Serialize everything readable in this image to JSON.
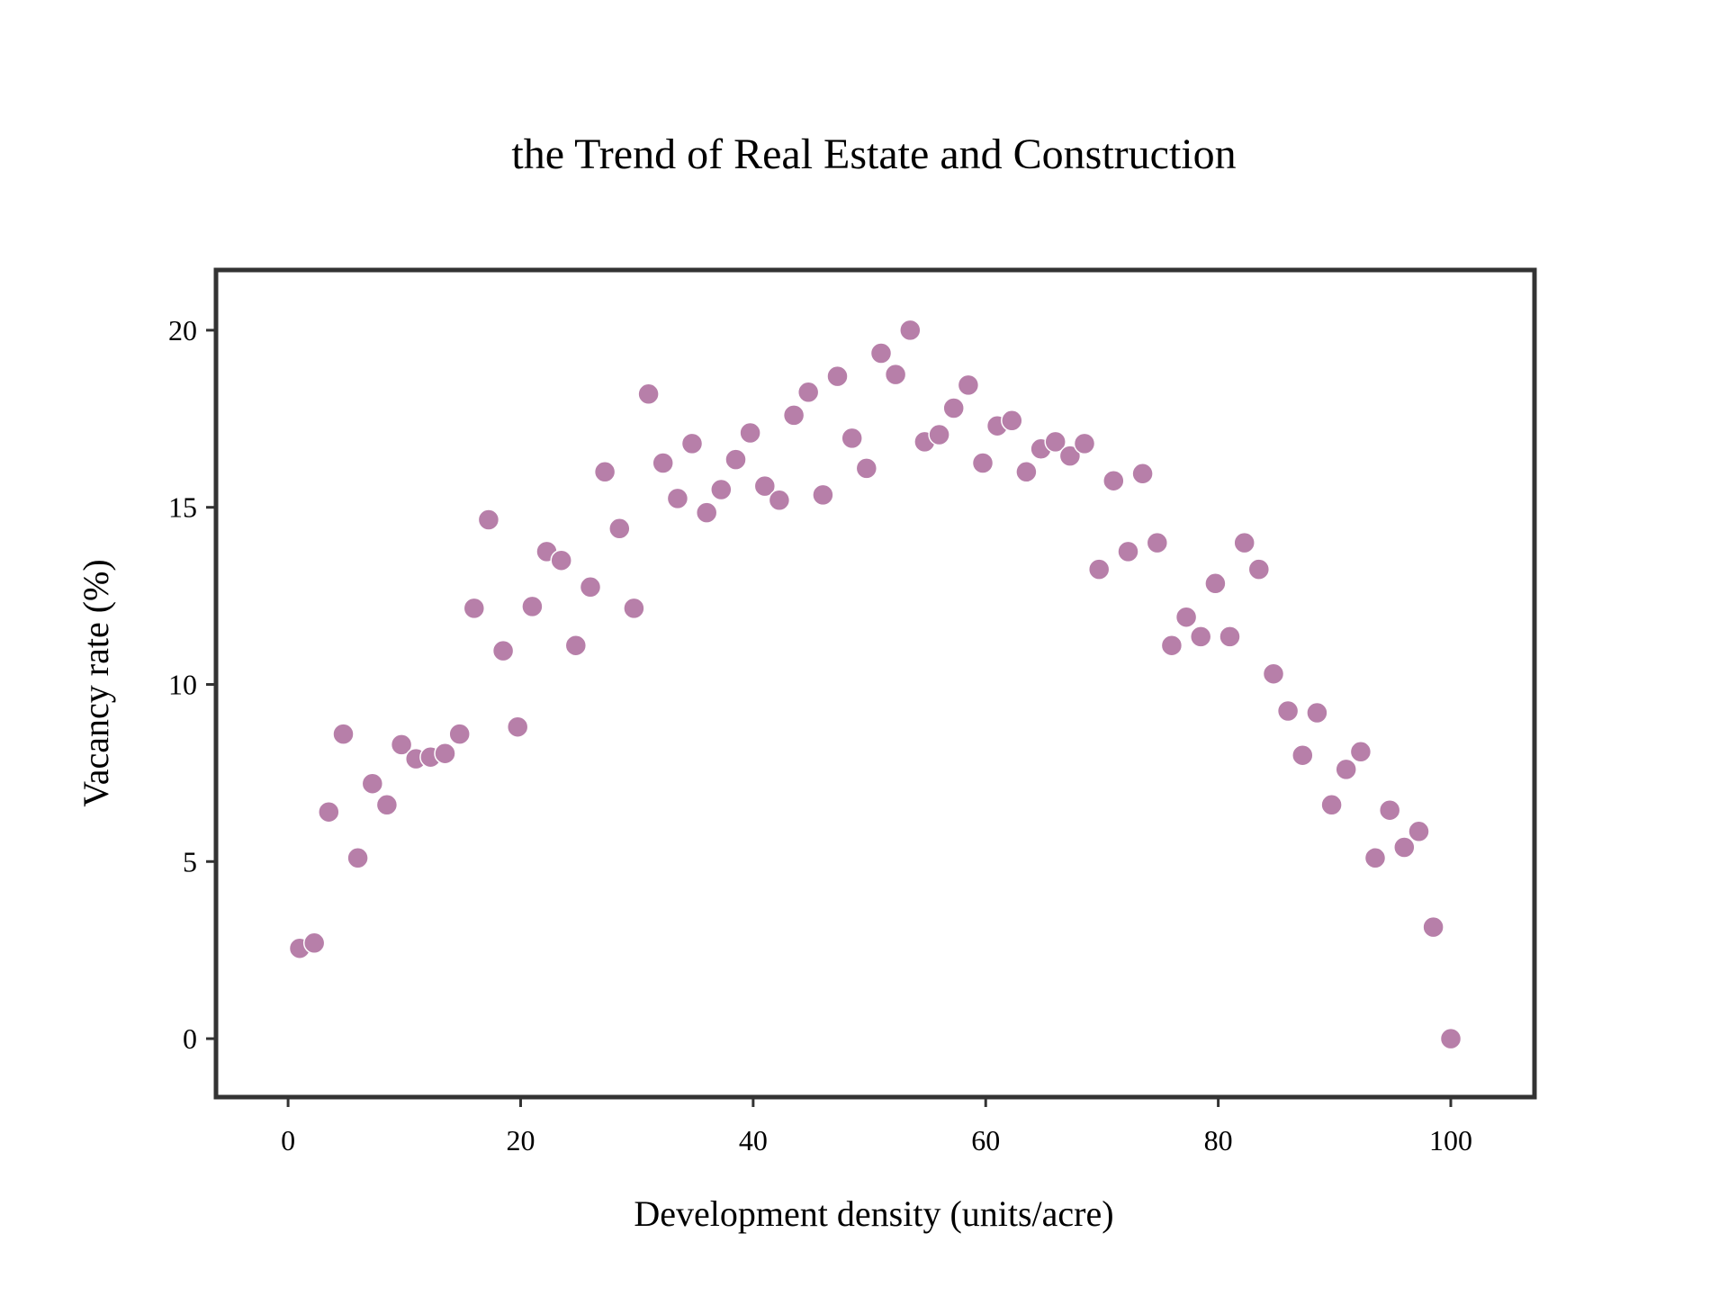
{
  "chart_data": {
    "type": "scatter",
    "title": "the Trend of Real Estate and Construction",
    "xlabel": "Development density (units/acre)",
    "ylabel": "Vacancy rate (%)",
    "xlim": [
      -6.2,
      107.2
    ],
    "ylim": [
      -1.65,
      21.7
    ],
    "xticks": [
      0,
      20,
      40,
      60,
      80,
      100
    ],
    "yticks": [
      0,
      5,
      10,
      15,
      20
    ],
    "xtick_labels": [
      "0",
      "20",
      "40",
      "60",
      "80",
      "100"
    ],
    "ytick_labels": [
      "0",
      "5",
      "10",
      "15",
      "20"
    ],
    "grid": false,
    "legend": "none",
    "colors": {
      "marker": "#b77fa9",
      "marker_edge": "#ffffff",
      "frame": "#333333"
    },
    "series": [
      {
        "x": [
          1.0,
          2.25,
          3.5,
          4.75,
          6.0,
          7.25,
          8.5,
          9.75,
          11.0,
          12.25,
          13.5,
          14.75,
          16.0,
          17.25,
          18.5,
          19.75,
          21.0,
          22.25,
          23.5,
          24.75,
          26.0,
          27.25,
          28.5,
          29.75,
          31.0,
          32.25,
          33.5,
          34.75,
          36.0,
          37.25,
          38.5,
          39.75,
          41.0,
          42.25,
          43.5,
          44.75,
          46.0,
          47.25,
          48.5,
          49.75,
          51.0,
          52.25,
          53.5,
          54.75,
          56.0,
          57.25,
          58.5,
          59.75,
          61.0,
          62.25,
          63.5,
          64.75,
          66.0,
          67.25,
          68.5,
          69.75,
          71.0,
          72.25,
          73.5,
          74.75,
          76.0,
          77.25,
          78.5,
          79.75,
          81.0,
          82.25,
          83.5,
          84.75,
          86.0,
          87.25,
          88.5,
          89.75,
          91.0,
          92.25,
          93.5,
          94.75,
          96.0,
          97.25,
          98.5,
          100.0
        ],
        "y": [
          2.55,
          2.7,
          6.4,
          8.6,
          5.1,
          7.2,
          6.6,
          8.3,
          7.9,
          7.95,
          8.05,
          8.6,
          12.15,
          14.65,
          10.95,
          8.8,
          12.2,
          13.75,
          13.5,
          11.1,
          12.75,
          16.0,
          14.4,
          12.15,
          18.2,
          16.25,
          15.25,
          16.8,
          14.85,
          15.5,
          16.35,
          17.1,
          15.6,
          15.2,
          17.6,
          18.25,
          15.35,
          18.7,
          16.95,
          16.1,
          19.35,
          18.75,
          20.0,
          16.85,
          17.05,
          17.8,
          18.45,
          16.25,
          17.3,
          17.45,
          16.0,
          16.65,
          16.85,
          16.45,
          16.8,
          13.25,
          15.75,
          13.75,
          15.95,
          14.0,
          11.1,
          11.9,
          11.35,
          12.85,
          11.35,
          14.0,
          13.25,
          10.3,
          9.25,
          8.0,
          9.2,
          6.6,
          7.6,
          8.1,
          5.1,
          6.45,
          5.4,
          5.85,
          3.15,
          0.0
        ]
      }
    ]
  }
}
